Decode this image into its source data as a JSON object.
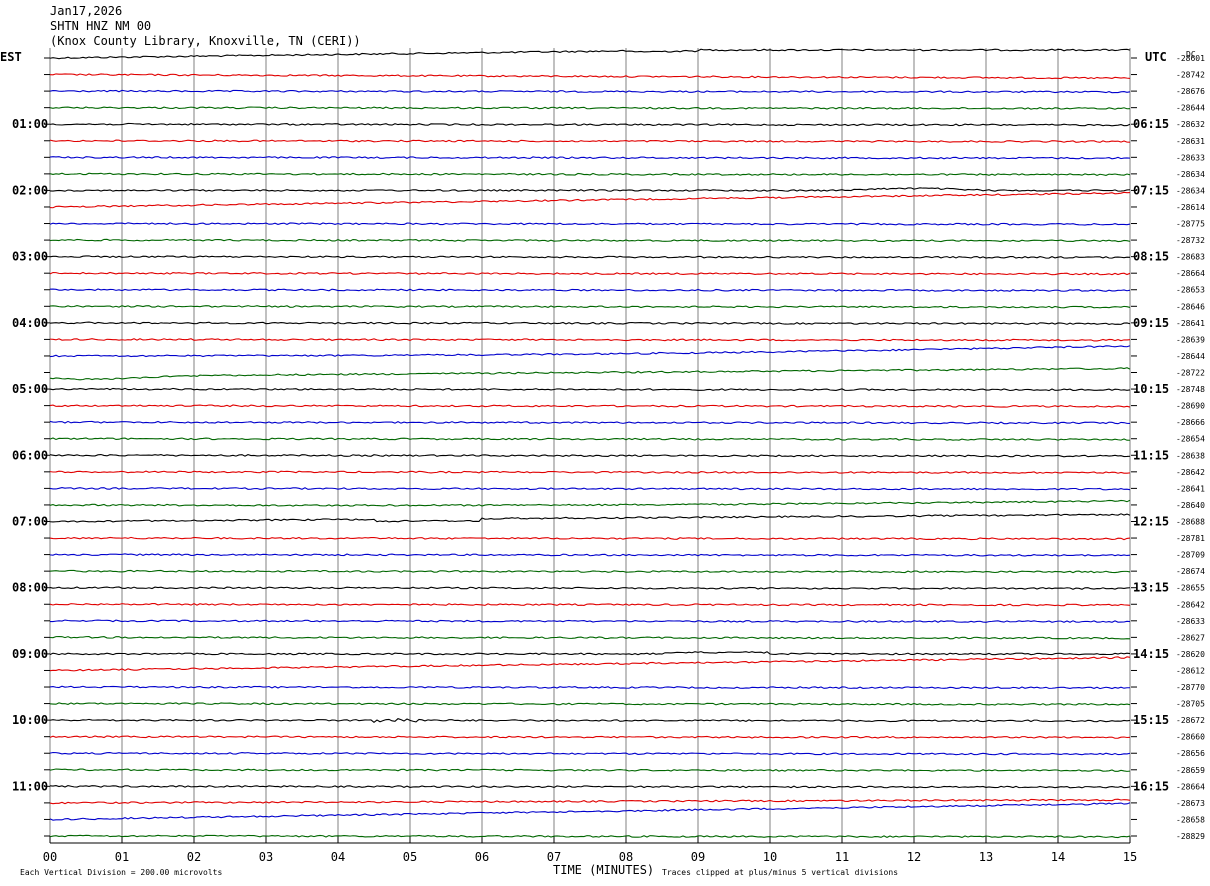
{
  "header": {
    "date": "Jan17,2026",
    "station": "SHTN HNZ NM 00",
    "location": "(Knox County Library, Knoxville, TN (CERI))"
  },
  "left_zone_label": "EST",
  "right_zone_label": "UTC",
  "dc_label": "DC",
  "footer": {
    "scale_note": "Each Vertical Division =  200.00 microvolts",
    "xlabel": "TIME (MINUTES)",
    "clip_note": "Traces clipped at plus/minus 5 vertical divisions"
  },
  "colors": {
    "black": "#000000",
    "red": "#e00000",
    "blue": "#0000cc",
    "green": "#006600",
    "grid": "#808080"
  },
  "chart_data": {
    "type": "line",
    "xlabel": "TIME (MINUTES)",
    "x_ticks": [
      "00",
      "01",
      "02",
      "03",
      "04",
      "05",
      "06",
      "07",
      "08",
      "09",
      "10",
      "11",
      "12",
      "13",
      "14",
      "15"
    ],
    "xlim": [
      0,
      15
    ],
    "trace_color_cycle": [
      "black",
      "red",
      "blue",
      "green"
    ],
    "left_hour_labels": [
      "01:00",
      "02:00",
      "03:00",
      "04:00",
      "05:00",
      "06:00",
      "07:00",
      "08:00",
      "09:00",
      "10:00",
      "11:00"
    ],
    "right_hour_labels": [
      "06:15",
      "07:15",
      "08:15",
      "09:15",
      "10:15",
      "11:15",
      "12:15",
      "13:15",
      "14:15",
      "15:15",
      "16:15"
    ],
    "dc_offsets": [
      "-28601",
      "-28742",
      "-28676",
      "-28644",
      "-28632",
      "-28631",
      "-28633",
      "-28634",
      "-28634",
      "-28614",
      "-28775",
      "-28732",
      "-28683",
      "-28664",
      "-28653",
      "-28646",
      "-28641",
      "-28639",
      "-28644",
      "-28722",
      "-28748",
      "-28690",
      "-28666",
      "-28654",
      "-28638",
      "-28642",
      "-28641",
      "-28640",
      "-28688",
      "-28781",
      "-28709",
      "-28674",
      "-28655",
      "-28642",
      "-28633",
      "-28627",
      "-28620",
      "-28612",
      "-28770",
      "-28705",
      "-28672",
      "-28660",
      "-28656",
      "-28659",
      "-28664",
      "-28673",
      "-28658",
      "-28829"
    ],
    "event_annotations": [
      {
        "trace": 40,
        "minute": 4.8,
        "note": "small burst"
      }
    ]
  }
}
